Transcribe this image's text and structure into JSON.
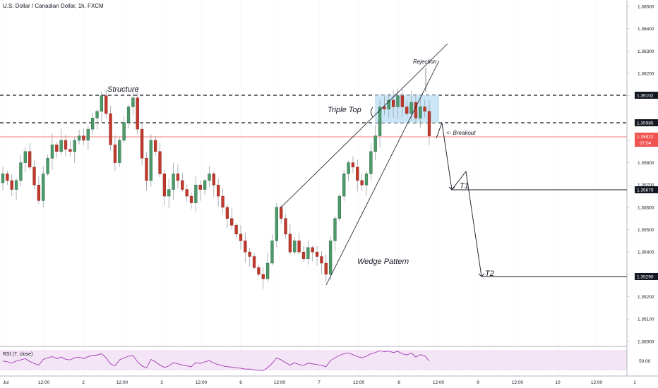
{
  "title": "U.S. Dollar / Canadian Dollar, 1h, FXCM",
  "rsi_label": "RSI (7, close)",
  "rsi_level": "50.00",
  "colors": {
    "up": "#26a69a",
    "up_body": "#4c9a6a",
    "down": "#c0392b",
    "current_price_line": "#ef5350",
    "rsi_line": "#9c27b0",
    "rsi_band": "#f3e5f5",
    "highlight_box": "#bfe1f5"
  },
  "annotations": {
    "structure": "Structure",
    "triple_top": "Triple Top",
    "rejection": "Rejection",
    "breakout": "<- Breakout",
    "wedge": "Wedge Pattern",
    "t1": "T1",
    "t2": "T2"
  },
  "price_tags": [
    {
      "value": "1.36102",
      "style": "dark"
    },
    {
      "value": "1.35985",
      "style": "dark"
    },
    {
      "value": "1.35922",
      "style": "red"
    },
    {
      "value": "07:04",
      "style": "red"
    },
    {
      "value": "1.35679",
      "style": "dark"
    },
    {
      "value": "1.35290",
      "style": "dark"
    }
  ],
  "chart_data": {
    "type": "candlestick",
    "symbol": "U.S. Dollar / Canadian Dollar",
    "interval": "1h",
    "source": "FXCM",
    "y_ticks": [
      "1.36500",
      "1.36400",
      "1.36300",
      "1.36200",
      "1.36100",
      "1.35900",
      "1.35800",
      "1.35700",
      "1.35600",
      "1.35500",
      "1.35400",
      "1.35300",
      "1.35200",
      "1.35100",
      "1.35000"
    ],
    "x_ticks": [
      "Jul",
      "12:00",
      "2",
      "12:00",
      "3",
      "12:00",
      "6",
      "12:00",
      "7",
      "12:00",
      "8",
      "12:00",
      "9",
      "12:00",
      "10",
      "12:00",
      "1"
    ],
    "ylim": [
      1.3495,
      1.3655
    ],
    "levels": [
      {
        "name": "Structure / Triple Top resistance",
        "value": 1.36102
      },
      {
        "name": "Breakout level",
        "value": 1.35985
      },
      {
        "name": "Current price",
        "value": 1.35922
      },
      {
        "name": "T1",
        "value": 1.35679
      },
      {
        "name": "T2",
        "value": 1.3529
      }
    ],
    "closes": [
      1.3575,
      1.3572,
      1.3568,
      1.3572,
      1.358,
      1.3585,
      1.3578,
      1.357,
      1.3563,
      1.3575,
      1.3582,
      1.3588,
      1.3585,
      1.359,
      1.3586,
      1.3585,
      1.359,
      1.3592,
      1.359,
      1.3595,
      1.36,
      1.3603,
      1.361,
      1.3602,
      1.3588,
      1.358,
      1.359,
      1.3598,
      1.3605,
      1.3609,
      1.3595,
      1.3582,
      1.3572,
      1.359,
      1.3585,
      1.3575,
      1.3565,
      1.3568,
      1.3575,
      1.3572,
      1.3568,
      1.3565,
      1.3562,
      1.357,
      1.3568,
      1.3572,
      1.3575,
      1.357,
      1.3565,
      1.356,
      1.3555,
      1.3552,
      1.3548,
      1.3545,
      1.354,
      1.3538,
      1.3533,
      1.353,
      1.3528,
      1.3535,
      1.3545,
      1.356,
      1.3555,
      1.3548,
      1.354,
      1.3545,
      1.354,
      1.3537,
      1.3542,
      1.354,
      1.3538,
      1.3535,
      1.353,
      1.3545,
      1.3555,
      1.3565,
      1.3575,
      1.358,
      1.3578,
      1.3572,
      1.357,
      1.3575,
      1.3585,
      1.3592,
      1.3605,
      1.3604,
      1.3608,
      1.3605,
      1.361,
      1.3605,
      1.3602,
      1.3607,
      1.36,
      1.3605,
      1.3603,
      1.3592
    ],
    "rsi": [
      52,
      50,
      47,
      52,
      55,
      58,
      51,
      46,
      42,
      56,
      60,
      63,
      58,
      62,
      56,
      55,
      60,
      62,
      58,
      63,
      66,
      67,
      70,
      60,
      45,
      40,
      55,
      60,
      64,
      66,
      50,
      40,
      35,
      56,
      50,
      42,
      36,
      40,
      48,
      45,
      42,
      40,
      38,
      48,
      46,
      50,
      53,
      47,
      43,
      40,
      38,
      37,
      35,
      34,
      32,
      32,
      30,
      29,
      28,
      36,
      46,
      60,
      55,
      48,
      42,
      48,
      43,
      41,
      47,
      45,
      43,
      41,
      38,
      53,
      60,
      66,
      70,
      72,
      68,
      63,
      60,
      64,
      70,
      73,
      78,
      75,
      77,
      73,
      76,
      70,
      67,
      72,
      62,
      68,
      65,
      52
    ]
  }
}
